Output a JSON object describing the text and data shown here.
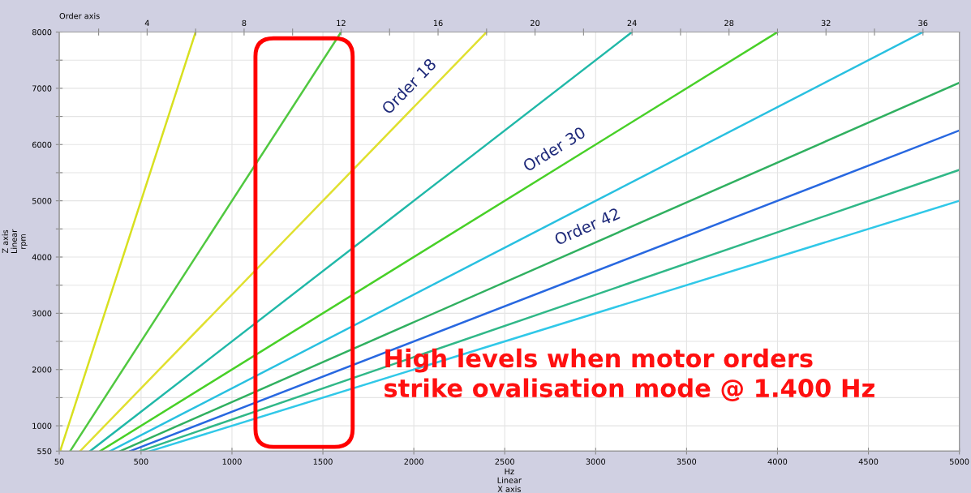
{
  "chart_data": {
    "type": "line",
    "xlabel": "Hz\nLinear\nX axis",
    "ylabel": "Z axis\nLinear\nrpm",
    "x2label": "Order axis",
    "xlim": [
      50,
      5000
    ],
    "xticks": [
      50,
      500,
      1000,
      1500,
      2000,
      2500,
      3000,
      3500,
      4000,
      4500,
      5000
    ],
    "ylim": [
      550,
      8000
    ],
    "yticks": [
      550,
      1000,
      {
        "value": 1500,
        "label": null
      },
      2000,
      {
        "value": 2500,
        "label": null
      },
      3000,
      {
        "value": 3500,
        "label": null
      },
      4000,
      {
        "value": 4500,
        "label": null
      },
      5000,
      {
        "value": 5500,
        "label": null
      },
      6000,
      {
        "value": 6500,
        "label": null
      },
      7000,
      {
        "value": 7500,
        "label": null
      },
      8000
    ],
    "x2lim": [
      0.375,
      37.5
    ],
    "x2ticks": [
      {
        "value": 2,
        "label": null
      },
      4,
      {
        "value": 6,
        "label": null
      },
      8,
      {
        "value": 10,
        "label": null
      },
      12,
      {
        "value": 14,
        "label": null
      },
      16,
      {
        "value": 18,
        "label": null
      },
      20,
      {
        "value": 22,
        "label": null
      },
      24,
      {
        "value": 26,
        "label": null
      },
      28,
      {
        "value": 30,
        "label": null
      },
      32,
      {
        "value": 34,
        "label": null
      },
      36
    ],
    "grid": true,
    "marker": "none",
    "line_style": "solid",
    "series": [
      {
        "color": "#d8e020",
        "x": [
          55,
          800
        ],
        "values": [
          550,
          8000
        ]
      },
      {
        "color": "#50c840",
        "x": [
          110,
          1600
        ],
        "values": [
          550,
          8000
        ]
      },
      {
        "color": "#e0e030",
        "x": [
          165,
          2400
        ],
        "values": [
          550,
          8000
        ]
      },
      {
        "color": "#20b8a8",
        "x": [
          220,
          3200
        ],
        "values": [
          550,
          8000
        ]
      },
      {
        "color": "#48d028",
        "x": [
          275,
          4000
        ],
        "values": [
          550,
          8000
        ]
      },
      {
        "color": "#28c0e0",
        "x": [
          330,
          4800
        ],
        "values": [
          550,
          8000
        ]
      },
      {
        "color": "#30b060",
        "x": [
          385,
          5000
        ],
        "values": [
          550,
          7100
        ]
      },
      {
        "color": "#2868e0",
        "x": [
          440,
          5000
        ],
        "values": [
          550,
          6250
        ]
      },
      {
        "color": "#30b888",
        "x": [
          495,
          5000
        ],
        "values": [
          550,
          5550
        ]
      },
      {
        "color": "#30c8e8",
        "x": [
          550,
          5000
        ],
        "values": [
          550,
          5000
        ]
      }
    ],
    "annotations": [
      {
        "text": "Order 18",
        "x": 2044,
        "y": 6813
      },
      {
        "text": "Order 30",
        "x": 2824,
        "y": 5648
      },
      {
        "text": "Order 42",
        "x": 2994,
        "y": 4253
      },
      "High levels when motor orders\nstrike ovalisation mode @ 1.400 Hz"
    ]
  }
}
